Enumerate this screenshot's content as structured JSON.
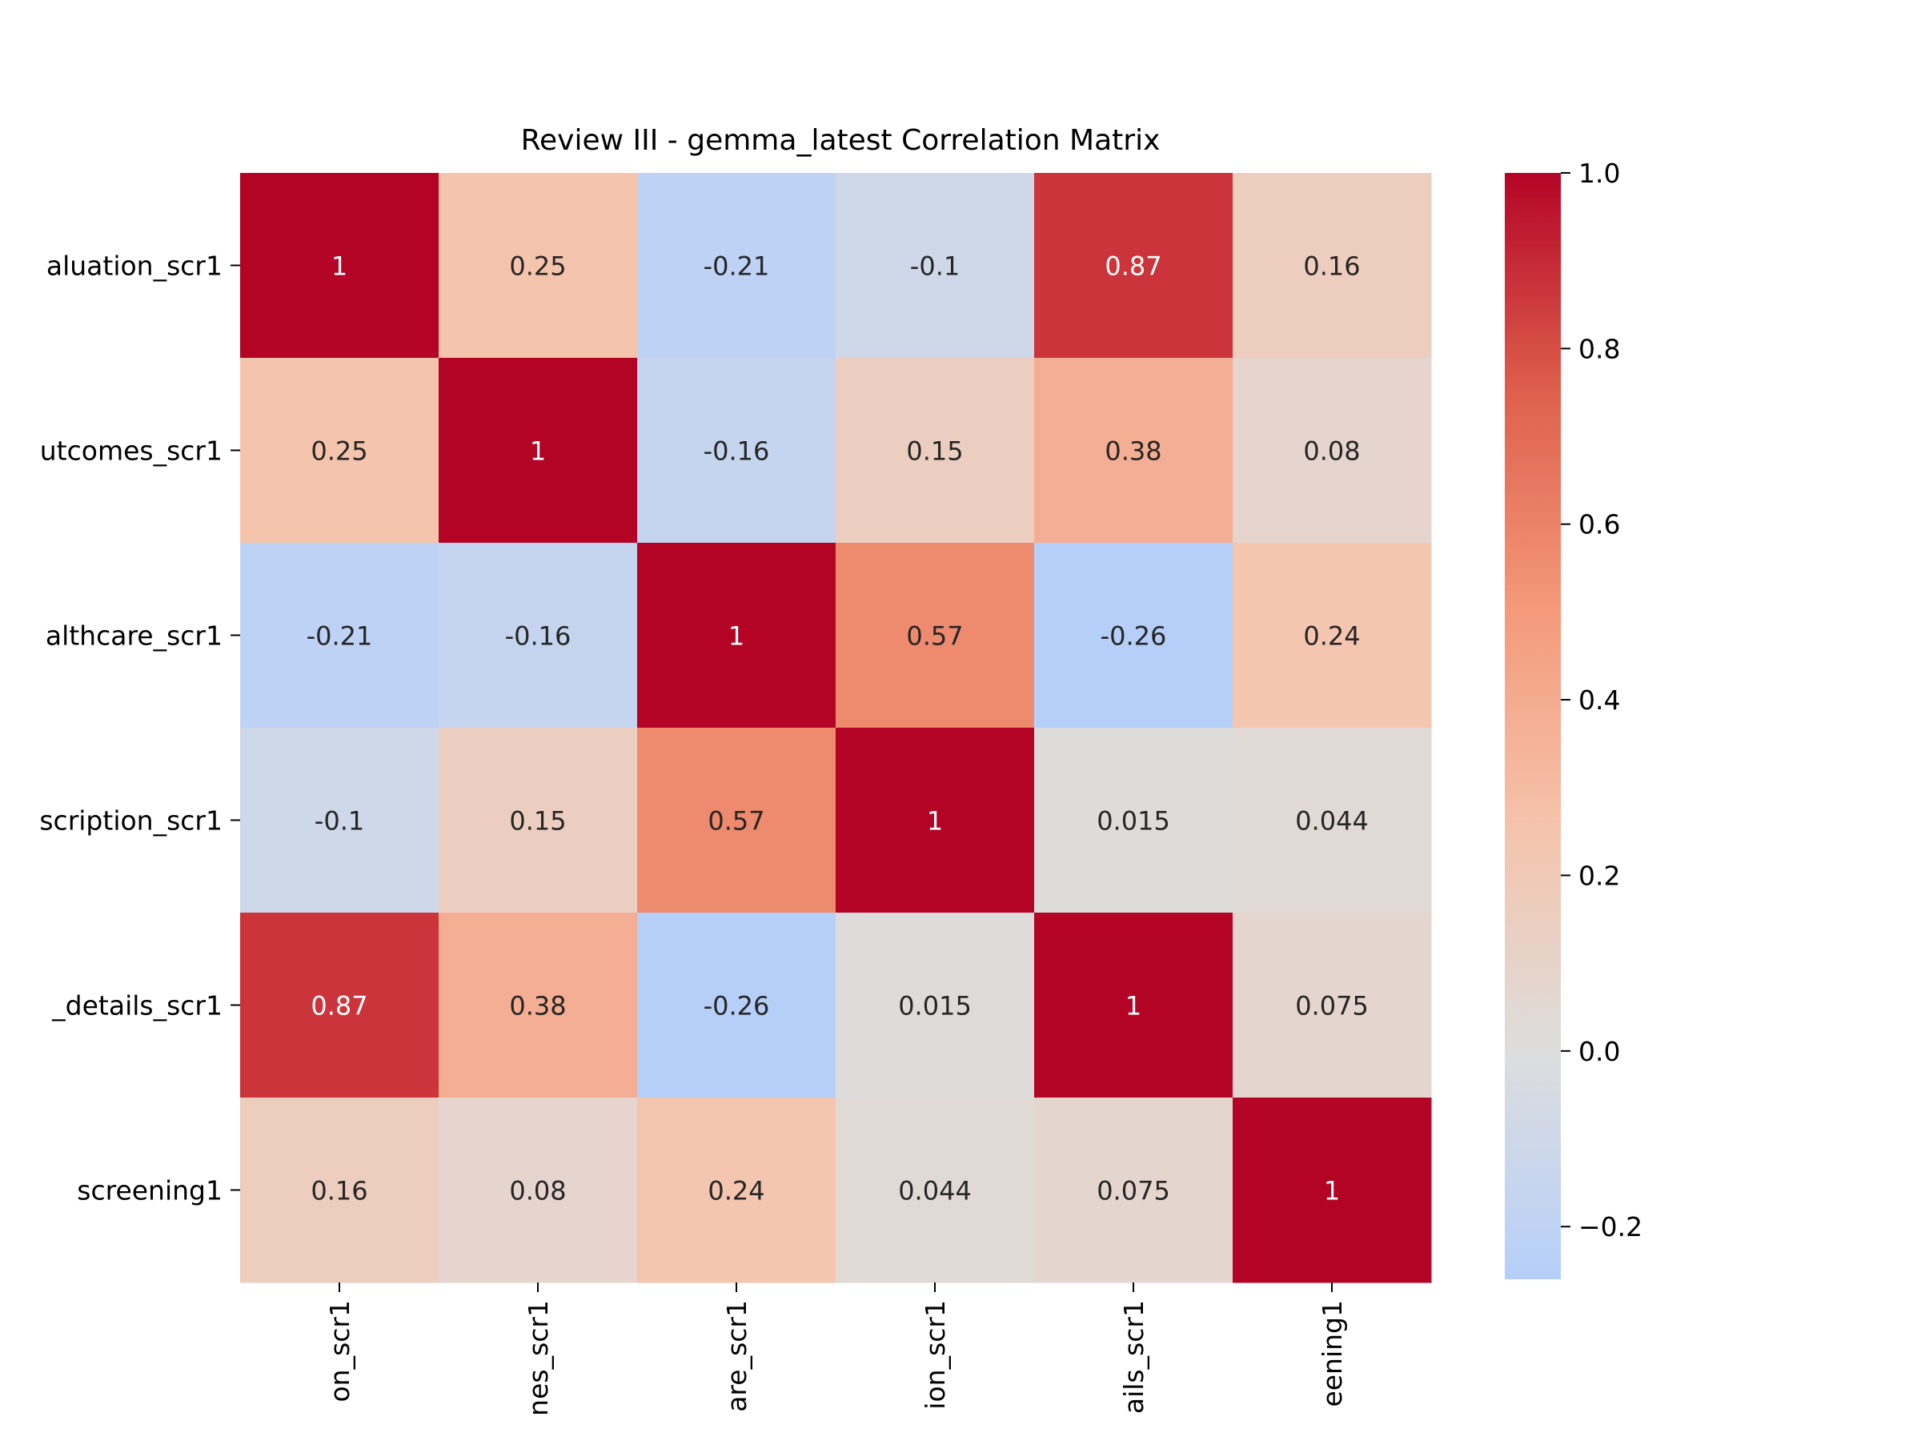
{
  "chart_data": {
    "type": "heatmap",
    "title": "Review III - gemma_latest Correlation Matrix",
    "row_labels": [
      "aluation_scr1",
      "utcomes_scr1",
      "althcare_scr1",
      "scription_scr1",
      "_details_scr1",
      "screening1"
    ],
    "column_labels": [
      "on_scr1",
      "nes_scr1",
      "are_scr1",
      "ion_scr1",
      "ails_scr1",
      "eening1"
    ],
    "values": [
      [
        1,
        0.25,
        -0.21,
        -0.1,
        0.87,
        0.16
      ],
      [
        0.25,
        1,
        -0.16,
        0.15,
        0.38,
        0.08
      ],
      [
        -0.21,
        -0.16,
        1,
        0.57,
        -0.26,
        0.24
      ],
      [
        -0.1,
        0.15,
        0.57,
        1,
        0.015,
        0.044
      ],
      [
        0.87,
        0.38,
        -0.26,
        0.015,
        1,
        0.075
      ],
      [
        0.16,
        0.08,
        0.24,
        0.044,
        0.075,
        1
      ]
    ],
    "annotations": [
      [
        "1",
        "0.25",
        "-0.21",
        "-0.1",
        "0.87",
        "0.16"
      ],
      [
        "0.25",
        "1",
        "-0.16",
        "0.15",
        "0.38",
        "0.08"
      ],
      [
        "-0.21",
        "-0.16",
        "1",
        "0.57",
        "-0.26",
        "0.24"
      ],
      [
        "-0.1",
        "0.15",
        "0.57",
        "1",
        "0.015",
        "0.044"
      ],
      [
        "0.87",
        "0.38",
        "-0.26",
        "0.015",
        "1",
        "0.075"
      ],
      [
        "0.16",
        "0.08",
        "0.24",
        "0.044",
        "0.075",
        "1"
      ]
    ],
    "colormap": "coolwarm",
    "color_range": [
      -0.26,
      1.0
    ],
    "colorbar": {
      "ticks": [
        -0.2,
        0.0,
        0.2,
        0.4,
        0.6,
        0.8,
        1.0
      ],
      "tick_labels": [
        "−0.2",
        "0.0",
        "0.2",
        "0.4",
        "0.6",
        "0.8",
        "1.0"
      ],
      "placement": "right"
    },
    "grid": false
  }
}
